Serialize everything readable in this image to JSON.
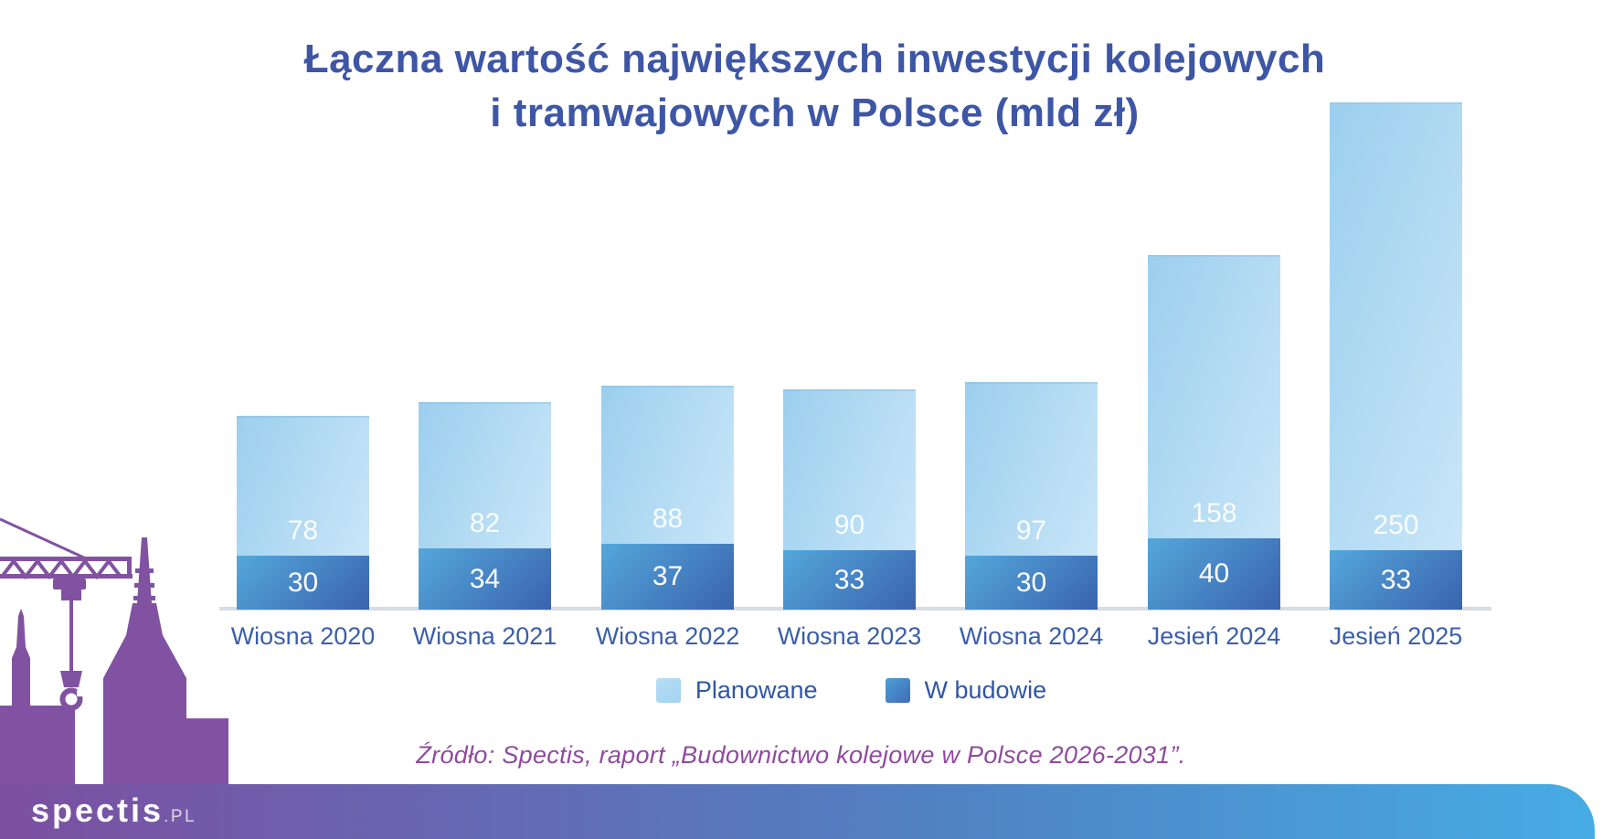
{
  "title": {
    "line1": "Łączna wartość największych inwestycji kolejowych",
    "line2": "i tramwajowych w Polsce (mld zł)"
  },
  "chart_data": {
    "type": "bar",
    "stacked": true,
    "title": "Łączna wartość największych inwestycji kolejowych i tramwajowych w Polsce (mld zł)",
    "unit": "mld zł",
    "categories": [
      "Wiosna 2020",
      "Wiosna 2021",
      "Wiosna 2022",
      "Wiosna 2023",
      "Wiosna 2024",
      "Jesień 2024",
      "Jesień 2025"
    ],
    "series": [
      {
        "name": "Planowane",
        "values": [
          78,
          82,
          88,
          90,
          97,
          158,
          250
        ]
      },
      {
        "name": "W budowie",
        "values": [
          30,
          34,
          37,
          33,
          30,
          40,
          33
        ]
      }
    ],
    "totals": [
      108,
      116,
      125,
      123,
      127,
      198,
      283
    ],
    "ylim": [
      0,
      285
    ],
    "grid": false,
    "legend_position": "bottom",
    "value_labels": "inside-white"
  },
  "legend": {
    "items": [
      {
        "label": "Planowane",
        "swatch": "light-blue"
      },
      {
        "label": "W budowie",
        "swatch": "dark-blue"
      }
    ]
  },
  "source": {
    "text": "Źródło: Spectis, raport „Budownictwo kolejowe w Polsce 2026-2031”."
  },
  "footer": {
    "brand": "spectis",
    "brand_suffix": ".pl"
  },
  "colors": {
    "title": "#3e56a6",
    "axis_label": "#3a5fa8",
    "legend_text": "#2f57a5",
    "source_text": "#8e4b9d",
    "value_text": "#ffffff",
    "planned_light": "#c9e6f8",
    "planned_dark": "#9ccfee",
    "build_light": "#54a7db",
    "build_dark": "#3a63ae",
    "axis_line": "#d7dbe2",
    "skyline": "#8152a1",
    "footer_left": "#7c4fa0",
    "footer_right": "#47ace4"
  }
}
